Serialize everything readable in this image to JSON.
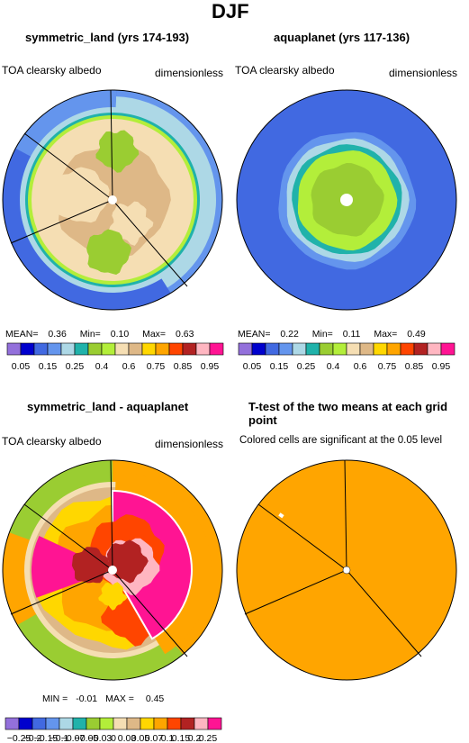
{
  "figure": {
    "title": "DJF"
  },
  "panels": [
    {
      "title": "symmetric_land (yrs 174-193)",
      "left_label": "TOA clearsky albedo",
      "right_label": "dimensionless",
      "stats": {
        "mean_label": "MEAN=",
        "mean": "0.36",
        "min_label": "Min=",
        "min": "0.10",
        "max_label": "Max=",
        "max": "0.63"
      }
    },
    {
      "title": "aquaplanet (yrs 117-136)",
      "left_label": "TOA clearsky albedo",
      "right_label": "dimensionless",
      "stats": {
        "mean_label": "MEAN=",
        "mean": "0.22",
        "min_label": "Min=",
        "min": "0.11",
        "max_label": "Max=",
        "max": "0.49"
      }
    },
    {
      "title": "symmetric_land - aquaplanet",
      "left_label": "TOA clearsky albedo",
      "right_label": "dimensionless",
      "stats": {
        "min_label": "MIN =",
        "min": "-0.01",
        "max_label": "MAX =",
        "max": "0.45"
      }
    },
    {
      "title": "T-test of the two means at each grid point",
      "left_label": "Colored cells are significant at the 0.05 level"
    }
  ],
  "colorbars": {
    "abs": {
      "colors": [
        "#9370db",
        "#0000cd",
        "#4169e1",
        "#6495ed",
        "#add8e6",
        "#20b2aa",
        "#9acd32",
        "#b3ee3a",
        "#f5deb3",
        "#deb887",
        "#ffd700",
        "#ffa500",
        "#ff4500",
        "#b22222",
        "#ffb6c1",
        "#ff1493"
      ],
      "labels": [
        "0.05",
        "0.15",
        "0.25",
        "0.4",
        "0.6",
        "0.75",
        "0.85",
        "0.95"
      ]
    },
    "diff": {
      "colors": [
        "#9370db",
        "#0000cd",
        "#4169e1",
        "#6495ed",
        "#add8e6",
        "#20b2aa",
        "#9acd32",
        "#b3ee3a",
        "#f5deb3",
        "#deb887",
        "#ffd700",
        "#ffa500",
        "#ff4500",
        "#b22222",
        "#ffb6c1",
        "#ff1493"
      ],
      "labels": [
        "−0.25",
        "−0.2",
        "−0.15",
        "−0.1",
        "−0.07",
        "−0.05",
        "−0.03",
        "0",
        "0.03",
        "0.05",
        "0.07",
        "0.1",
        "0.15",
        "0.2",
        "0.25"
      ]
    }
  },
  "chart_data": [
    {
      "type": "heatmap",
      "title": "symmetric_land (yrs 174-193)",
      "variable": "TOA clearsky albedo",
      "units": "dimensionless",
      "projection": "polar",
      "mean": 0.36,
      "min": 0.1,
      "max": 0.63,
      "contour_levels": [
        0.05,
        0.1,
        0.15,
        0.2,
        0.25,
        0.3,
        0.4,
        0.5,
        0.6,
        0.65,
        0.75,
        0.8,
        0.85,
        0.9,
        0.95
      ]
    },
    {
      "type": "heatmap",
      "title": "aquaplanet (yrs 117-136)",
      "variable": "TOA clearsky albedo",
      "units": "dimensionless",
      "projection": "polar",
      "mean": 0.22,
      "min": 0.11,
      "max": 0.49,
      "contour_levels": [
        0.05,
        0.1,
        0.15,
        0.2,
        0.25,
        0.3,
        0.4,
        0.5,
        0.6,
        0.65,
        0.75,
        0.8,
        0.85,
        0.9,
        0.95
      ]
    },
    {
      "type": "heatmap",
      "title": "symmetric_land - aquaplanet",
      "variable": "TOA clearsky albedo",
      "units": "dimensionless",
      "projection": "polar",
      "min": -0.01,
      "max": 0.45,
      "contour_levels": [
        -0.25,
        -0.2,
        -0.15,
        -0.1,
        -0.07,
        -0.05,
        -0.03,
        0,
        0.03,
        0.05,
        0.07,
        0.1,
        0.15,
        0.2,
        0.25
      ]
    },
    {
      "type": "heatmap",
      "title": "T-test of the two means at each grid point",
      "projection": "polar"
    }
  ]
}
